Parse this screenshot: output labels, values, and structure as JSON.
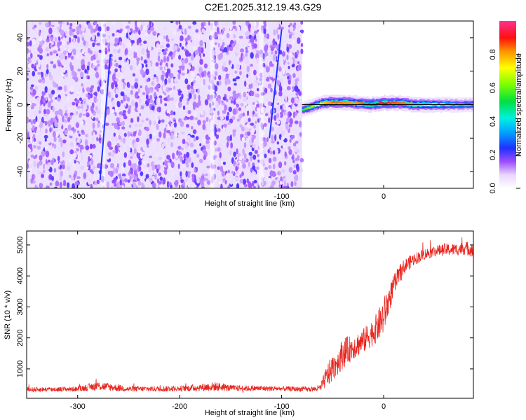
{
  "title": "C2E1.2025.312.19.43.G29",
  "chart_data": [
    {
      "type": "heatmap",
      "xlabel": "Height of straight line (km)",
      "ylabel": "Frequency (Hz)",
      "xlim": [
        -350,
        88
      ],
      "ylim": [
        -50,
        50
      ],
      "xticks": [
        -300,
        -200,
        -100,
        0
      ],
      "yticks": [
        -40,
        -20,
        0,
        20,
        40
      ],
      "colorbar": {
        "label": "Normalized spectral amplitude",
        "range": [
          0.0,
          1.0
        ],
        "ticks": [
          0.0,
          0.2,
          0.4,
          0.6,
          0.8
        ],
        "colormap": "rainbow (white-purple-blue-cyan-green-yellow-red-magenta)"
      },
      "ridge": {
        "description": "narrow high-amplitude band near 0 Hz for heights above about -80 km",
        "points": [
          {
            "x": -80,
            "y": -3,
            "amp": 0.55
          },
          {
            "x": -70,
            "y": -1,
            "amp": 0.65
          },
          {
            "x": -60,
            "y": 1,
            "amp": 0.75
          },
          {
            "x": -50,
            "y": 1.5,
            "amp": 0.85
          },
          {
            "x": -30,
            "y": 1,
            "amp": 0.8
          },
          {
            "x": -15,
            "y": 0,
            "amp": 0.9
          },
          {
            "x": 0,
            "y": 1,
            "amp": 0.9
          },
          {
            "x": 15,
            "y": 1,
            "amp": 0.85
          },
          {
            "x": 30,
            "y": 0,
            "amp": 0.8
          },
          {
            "x": 50,
            "y": 0,
            "amp": 0.7
          },
          {
            "x": 70,
            "y": 0,
            "amp": 0.6
          },
          {
            "x": 88,
            "y": 0,
            "amp": 0.55
          }
        ],
        "noise_region": {
          "x_from": -350,
          "x_to": -80,
          "amp_range": [
            0.0,
            0.15
          ]
        }
      },
      "grid": false
    },
    {
      "type": "line",
      "xlabel": "Height of straight line (km)",
      "ylabel": "SNR (10 * v/v)",
      "xlim": [
        -350,
        88
      ],
      "ylim": [
        50,
        5450
      ],
      "xticks": [
        -300,
        -200,
        -100,
        0
      ],
      "yticks": [
        1000,
        2000,
        3000,
        4000,
        5000
      ],
      "series": [
        {
          "color": "#e8251f",
          "x": [
            -350,
            -300,
            -280,
            -250,
            -200,
            -165,
            -150,
            -100,
            -70,
            -62,
            -55,
            -45,
            -40,
            -30,
            -20,
            -10,
            -5,
            0,
            10,
            20,
            30,
            40,
            50,
            60,
            70,
            80,
            88
          ],
          "y": [
            330,
            350,
            450,
            350,
            360,
            430,
            380,
            360,
            340,
            380,
            800,
            1250,
            1500,
            1700,
            1900,
            2200,
            2400,
            2700,
            3700,
            4300,
            4550,
            4700,
            4800,
            4850,
            4850,
            4900,
            4850
          ],
          "noise_amplitude": [
            80,
            80,
            150,
            90,
            90,
            150,
            100,
            80,
            80,
            120,
            400,
            450,
            500,
            400,
            400,
            450,
            500,
            600,
            350,
            250,
            200,
            180,
            180,
            200,
            200,
            220,
            250
          ]
        }
      ],
      "grid": false
    }
  ]
}
